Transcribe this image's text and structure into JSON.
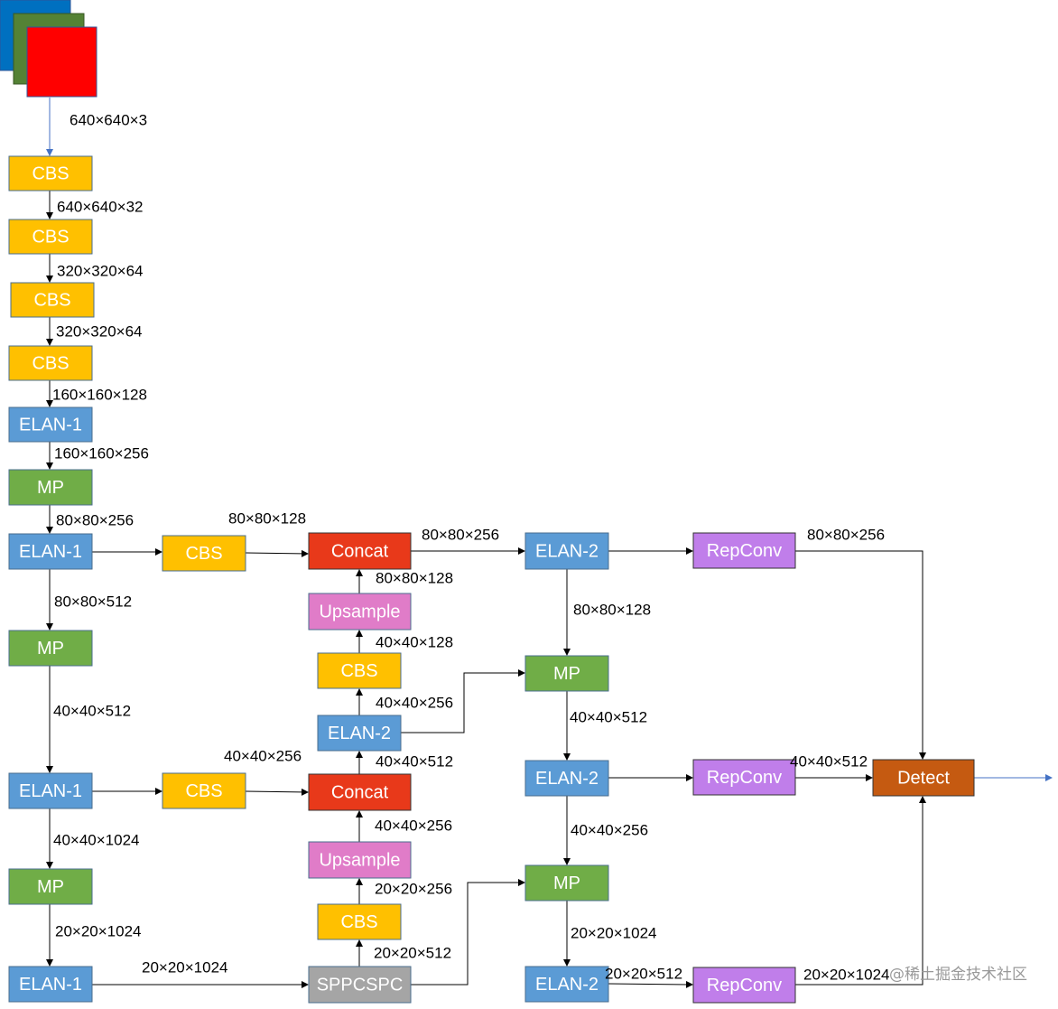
{
  "nodes": [
    "CBS",
    "CBS",
    "CBS",
    "CBS",
    "ELAN-1",
    "MP",
    "ELAN-1",
    "MP",
    "ELAN-1",
    "MP",
    "ELAN-1",
    "CBS",
    "CBS",
    "Concat",
    "Upsample",
    "CBS",
    "ELAN-2",
    "Concat",
    "Upsample",
    "CBS",
    "SPPCSPC",
    "ELAN-2",
    "MP",
    "ELAN-2",
    "MP",
    "ELAN-2",
    "RepConv",
    "RepConv",
    "RepConv",
    "Detect"
  ],
  "edge_labels": [
    "640×640×3",
    "640×640×32",
    "320×320×64",
    "320×320×64",
    "160×160×128",
    "160×160×256",
    "80×80×256",
    "80×80×128",
    "80×80×256",
    "80×80×256",
    "80×80×128",
    "80×80×512",
    "80×80×128",
    "40×40×128",
    "40×40×256",
    "40×40×512",
    "40×40×512",
    "40×40×256",
    "40×40×512",
    "40×40×512",
    "40×40×256",
    "40×40×256",
    "40×40×1024",
    "20×20×256",
    "20×20×1024",
    "20×20×1024",
    "20×20×512",
    "20×20×1024",
    "20×20×512",
    "20×20×1024"
  ],
  "watermark": "@稀土掘金技术社区"
}
